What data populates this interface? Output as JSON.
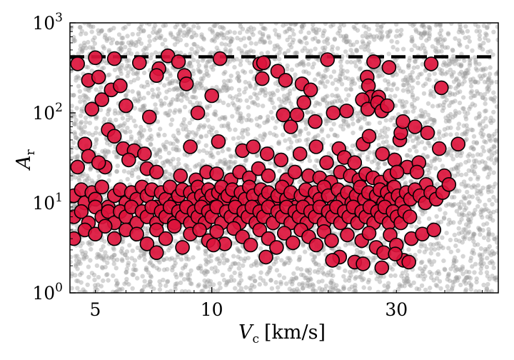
{
  "chart_data": {
    "type": "scatter",
    "x_scale": "log",
    "y_scale": "log",
    "xlim": [
      4.3,
      55
    ],
    "ylim": [
      1,
      1000
    ],
    "xlabel_main": "V",
    "xlabel_sub": "c",
    "xlabel_unit": "[km/s]",
    "ylabel_main": "A",
    "ylabel_sub": "r",
    "x_ticks": [
      {
        "value": 5,
        "label": "5"
      },
      {
        "value": 10,
        "label": "10"
      },
      {
        "value": 30,
        "label": "30"
      }
    ],
    "y_ticks": [
      {
        "value": 1,
        "base": "10",
        "exp": "0"
      },
      {
        "value": 10,
        "base": "10",
        "exp": "1"
      },
      {
        "value": 100,
        "base": "10",
        "exp": "2"
      },
      {
        "value": 1000,
        "base": "10",
        "exp": "3"
      }
    ],
    "reference_line": {
      "y": 420,
      "style": "dashed",
      "color": "#000000"
    },
    "colors": {
      "highlight_fill": "#dc143c",
      "highlight_edge": "#000000",
      "background_points": "#9a9a9a"
    },
    "series": [
      {
        "role": "background",
        "note": "dense gray population over full range",
        "count": 4500
      },
      {
        "role": "highlight",
        "points": [
          [
            4.5,
            350
          ],
          [
            5.0,
            410
          ],
          [
            5.6,
            400
          ],
          [
            6.5,
            360
          ],
          [
            7.3,
            310
          ],
          [
            7.7,
            430
          ],
          [
            8.2,
            370
          ],
          [
            10.5,
            400
          ],
          [
            13.3,
            350
          ],
          [
            13.6,
            360
          ],
          [
            19.9,
            390
          ],
          [
            26.2,
            370
          ],
          [
            28.7,
            320
          ],
          [
            36.9,
            350
          ],
          [
            4.8,
            230
          ],
          [
            5.1,
            250
          ],
          [
            5.5,
            180
          ],
          [
            5.8,
            200
          ],
          [
            7.2,
            260
          ],
          [
            8.5,
            260
          ],
          [
            8.6,
            210
          ],
          [
            13.5,
            240
          ],
          [
            14.8,
            290
          ],
          [
            15.5,
            230
          ],
          [
            17.1,
            210
          ],
          [
            18.0,
            180
          ],
          [
            25.2,
            250
          ],
          [
            25.4,
            200
          ],
          [
            25.8,
            150
          ],
          [
            27.0,
            150
          ],
          [
            39.2,
            190
          ],
          [
            4.9,
            110
          ],
          [
            5.2,
            140
          ],
          [
            6.0,
            120
          ],
          [
            6.9,
            90
          ],
          [
            9.2,
            100
          ],
          [
            10.0,
            155
          ],
          [
            15.3,
            95
          ],
          [
            16.0,
            70
          ],
          [
            16.6,
            95
          ],
          [
            17.3,
            130
          ],
          [
            18.5,
            80
          ],
          [
            20.6,
            100
          ],
          [
            22.3,
            105
          ],
          [
            24.5,
            140
          ],
          [
            25.3,
            110
          ],
          [
            26.8,
            130
          ],
          [
            27.5,
            105
          ],
          [
            28.4,
            120
          ],
          [
            30.6,
            50
          ],
          [
            30.8,
            60
          ],
          [
            31.2,
            80
          ],
          [
            33.5,
            70
          ],
          [
            36.1,
            60
          ],
          [
            4.7,
            45
          ],
          [
            5.3,
            25
          ],
          [
            5.4,
            65
          ],
          [
            5.6,
            55
          ],
          [
            5.9,
            40
          ],
          [
            6.3,
            38
          ],
          [
            6.7,
            35
          ],
          [
            8.8,
            42
          ],
          [
            10.4,
            48
          ],
          [
            12.0,
            38
          ],
          [
            12.8,
            42
          ],
          [
            13.9,
            35
          ],
          [
            15.1,
            30
          ],
          [
            16.9,
            35
          ],
          [
            18.6,
            42
          ],
          [
            19.8,
            28
          ],
          [
            21.3,
            40
          ],
          [
            22.0,
            32
          ],
          [
            23.4,
            28
          ],
          [
            24.6,
            45
          ],
          [
            25.5,
            55
          ],
          [
            27.6,
            35
          ],
          [
            29.7,
            30
          ],
          [
            32.0,
            25
          ],
          [
            34.3,
            28
          ],
          [
            38.7,
            40
          ],
          [
            43.3,
            45
          ],
          [
            4.5,
            25
          ],
          [
            4.8,
            33
          ],
          [
            5.1,
            28
          ],
          [
            6.1,
            30
          ],
          [
            6.8,
            24
          ],
          [
            7.2,
            22
          ],
          [
            8.3,
            20
          ],
          [
            9.1,
            18
          ],
          [
            9.7,
            22
          ],
          [
            10.3,
            21
          ],
          [
            11.2,
            18
          ],
          [
            11.8,
            22
          ],
          [
            12.5,
            19
          ],
          [
            13.2,
            24
          ],
          [
            14.0,
            20
          ],
          [
            15.6,
            18
          ],
          [
            16.4,
            22
          ],
          [
            17.8,
            20
          ],
          [
            19.0,
            19
          ],
          [
            20.3,
            17
          ],
          [
            21.5,
            22
          ],
          [
            22.8,
            20
          ],
          [
            24.0,
            18
          ],
          [
            25.0,
            21
          ],
          [
            26.1,
            19
          ],
          [
            27.3,
            17
          ],
          [
            28.9,
            20
          ],
          [
            30.1,
            22
          ],
          [
            33.9,
            22
          ],
          [
            35.8,
            16
          ],
          [
            39.9,
            20
          ],
          [
            4.4,
            12
          ],
          [
            4.6,
            14
          ],
          [
            4.7,
            10
          ],
          [
            4.9,
            13
          ],
          [
            5.0,
            11
          ],
          [
            5.2,
            15
          ],
          [
            5.4,
            9
          ],
          [
            5.6,
            12
          ],
          [
            5.8,
            14
          ],
          [
            6.0,
            10
          ],
          [
            6.2,
            13
          ],
          [
            6.4,
            11
          ],
          [
            6.6,
            15
          ],
          [
            6.8,
            12
          ],
          [
            7.0,
            14
          ],
          [
            7.2,
            9
          ],
          [
            7.4,
            13
          ],
          [
            7.6,
            11
          ],
          [
            7.8,
            15
          ],
          [
            8.0,
            10
          ],
          [
            8.2,
            12
          ],
          [
            8.4,
            14
          ],
          [
            8.6,
            9
          ],
          [
            8.8,
            13
          ],
          [
            9.0,
            11
          ],
          [
            9.2,
            15
          ],
          [
            9.4,
            12
          ],
          [
            9.6,
            10
          ],
          [
            9.8,
            14
          ],
          [
            10.0,
            12
          ],
          [
            10.2,
            9
          ],
          [
            10.4,
            13
          ],
          [
            10.6,
            15
          ],
          [
            10.8,
            11
          ],
          [
            11.0,
            12
          ],
          [
            11.3,
            14
          ],
          [
            11.6,
            10
          ],
          [
            11.9,
            13
          ],
          [
            12.2,
            11
          ],
          [
            12.5,
            15
          ],
          [
            12.8,
            12
          ],
          [
            13.1,
            9
          ],
          [
            13.4,
            14
          ],
          [
            13.7,
            11
          ],
          [
            14.0,
            13
          ],
          [
            14.4,
            10
          ],
          [
            14.8,
            12
          ],
          [
            15.2,
            15
          ],
          [
            15.6,
            11
          ],
          [
            16.0,
            13
          ],
          [
            16.5,
            9
          ],
          [
            17.0,
            12
          ],
          [
            17.5,
            14
          ],
          [
            18.0,
            10
          ],
          [
            18.5,
            13
          ],
          [
            19.0,
            11
          ],
          [
            19.5,
            15
          ],
          [
            20.0,
            12
          ],
          [
            20.6,
            9
          ],
          [
            21.2,
            14
          ],
          [
            21.8,
            11
          ],
          [
            22.4,
            13
          ],
          [
            23.0,
            10
          ],
          [
            23.6,
            12
          ],
          [
            24.2,
            15
          ],
          [
            24.8,
            11
          ],
          [
            25.4,
            13
          ],
          [
            26.0,
            9
          ],
          [
            26.6,
            12
          ],
          [
            27.2,
            14
          ],
          [
            27.8,
            10
          ],
          [
            28.4,
            13
          ],
          [
            29.0,
            11
          ],
          [
            29.6,
            15
          ],
          [
            30.3,
            12
          ],
          [
            31.0,
            10
          ],
          [
            31.8,
            13
          ],
          [
            32.6,
            11
          ],
          [
            33.5,
            14
          ],
          [
            34.5,
            12
          ],
          [
            35.6,
            10
          ],
          [
            36.8,
            13
          ],
          [
            38.0,
            11
          ],
          [
            39.5,
            13
          ],
          [
            41.0,
            16
          ],
          [
            4.4,
            7
          ],
          [
            4.6,
            8
          ],
          [
            4.8,
            6
          ],
          [
            5.0,
            9
          ],
          [
            5.2,
            7
          ],
          [
            5.4,
            8
          ],
          [
            5.6,
            6
          ],
          [
            5.8,
            8
          ],
          [
            6.0,
            7
          ],
          [
            6.2,
            9
          ],
          [
            6.4,
            6
          ],
          [
            6.6,
            8
          ],
          [
            6.8,
            7
          ],
          [
            7.0,
            9
          ],
          [
            7.2,
            6
          ],
          [
            7.4,
            8
          ],
          [
            7.6,
            7
          ],
          [
            7.8,
            9
          ],
          [
            8.0,
            6
          ],
          [
            8.2,
            8
          ],
          [
            8.4,
            7
          ],
          [
            8.6,
            9
          ],
          [
            8.8,
            6
          ],
          [
            9.0,
            8
          ],
          [
            9.2,
            7
          ],
          [
            9.4,
            9
          ],
          [
            9.6,
            6
          ],
          [
            9.8,
            8
          ],
          [
            10.0,
            7
          ],
          [
            10.3,
            9
          ],
          [
            10.6,
            6
          ],
          [
            10.9,
            8
          ],
          [
            11.2,
            7
          ],
          [
            11.5,
            9
          ],
          [
            11.8,
            6
          ],
          [
            12.1,
            8
          ],
          [
            12.4,
            7
          ],
          [
            12.7,
            9
          ],
          [
            13.0,
            6
          ],
          [
            13.3,
            8
          ],
          [
            13.6,
            7
          ],
          [
            14.0,
            9
          ],
          [
            14.4,
            6
          ],
          [
            14.8,
            8
          ],
          [
            15.2,
            7
          ],
          [
            15.6,
            9
          ],
          [
            16.0,
            6
          ],
          [
            16.4,
            8
          ],
          [
            16.8,
            7
          ],
          [
            17.2,
            9
          ],
          [
            17.6,
            6
          ],
          [
            18.0,
            8
          ],
          [
            18.5,
            7
          ],
          [
            19.0,
            9
          ],
          [
            19.5,
            6
          ],
          [
            20.0,
            8
          ],
          [
            20.5,
            7
          ],
          [
            21.0,
            9
          ],
          [
            21.5,
            6
          ],
          [
            22.0,
            8
          ],
          [
            22.6,
            7
          ],
          [
            23.2,
            9
          ],
          [
            23.8,
            6
          ],
          [
            24.4,
            8
          ],
          [
            25.0,
            7
          ],
          [
            25.6,
            9
          ],
          [
            26.2,
            6
          ],
          [
            26.8,
            8
          ],
          [
            27.4,
            7
          ],
          [
            28.0,
            9
          ],
          [
            28.7,
            6
          ],
          [
            29.4,
            8
          ],
          [
            30.1,
            7
          ],
          [
            30.8,
            6
          ],
          [
            31.5,
            8
          ],
          [
            32.5,
            7
          ],
          [
            4.4,
            4
          ],
          [
            4.7,
            5
          ],
          [
            5.0,
            4.5
          ],
          [
            5.3,
            5.5
          ],
          [
            5.6,
            4
          ],
          [
            6.0,
            5
          ],
          [
            6.4,
            4.5
          ],
          [
            6.8,
            3.5
          ],
          [
            7.2,
            5
          ],
          [
            7.6,
            4
          ],
          [
            8.0,
            5.5
          ],
          [
            8.4,
            3.2
          ],
          [
            8.8,
            4.5
          ],
          [
            9.3,
            5
          ],
          [
            9.8,
            3.8
          ],
          [
            10.3,
            4.8
          ],
          [
            10.8,
            3.5
          ],
          [
            11.4,
            5.2
          ],
          [
            12.0,
            4.2
          ],
          [
            12.6,
            3.4
          ],
          [
            13.3,
            5
          ],
          [
            14.0,
            4
          ],
          [
            14.7,
            3.2
          ],
          [
            15.4,
            4.6
          ],
          [
            16.2,
            3.6
          ],
          [
            17.0,
            5
          ],
          [
            17.8,
            4.2
          ],
          [
            18.6,
            3.4
          ],
          [
            19.5,
            4.8
          ],
          [
            20.4,
            3.8
          ],
          [
            21.4,
            2.5
          ],
          [
            22.4,
            4.4
          ],
          [
            23.4,
            2.2
          ],
          [
            24.4,
            3.8
          ],
          [
            25.5,
            4.6
          ],
          [
            26.6,
            3.2
          ],
          [
            27.8,
            2.8
          ],
          [
            28.9,
            4.4
          ],
          [
            30.0,
            3.4
          ],
          [
            31.3,
            2.3
          ],
          [
            32.8,
            4
          ],
          [
            35.0,
            4.5
          ],
          [
            37.5,
            5
          ],
          [
            7.2,
            2.8
          ],
          [
            10.1,
            3.4
          ],
          [
            13.8,
            2.5
          ],
          [
            20.5,
            2.3
          ],
          [
            24.6,
            2.1
          ],
          [
            27.5,
            1.9
          ],
          [
            29.8,
            2.7
          ],
          [
            32.3,
            2.2
          ]
        ]
      }
    ]
  }
}
